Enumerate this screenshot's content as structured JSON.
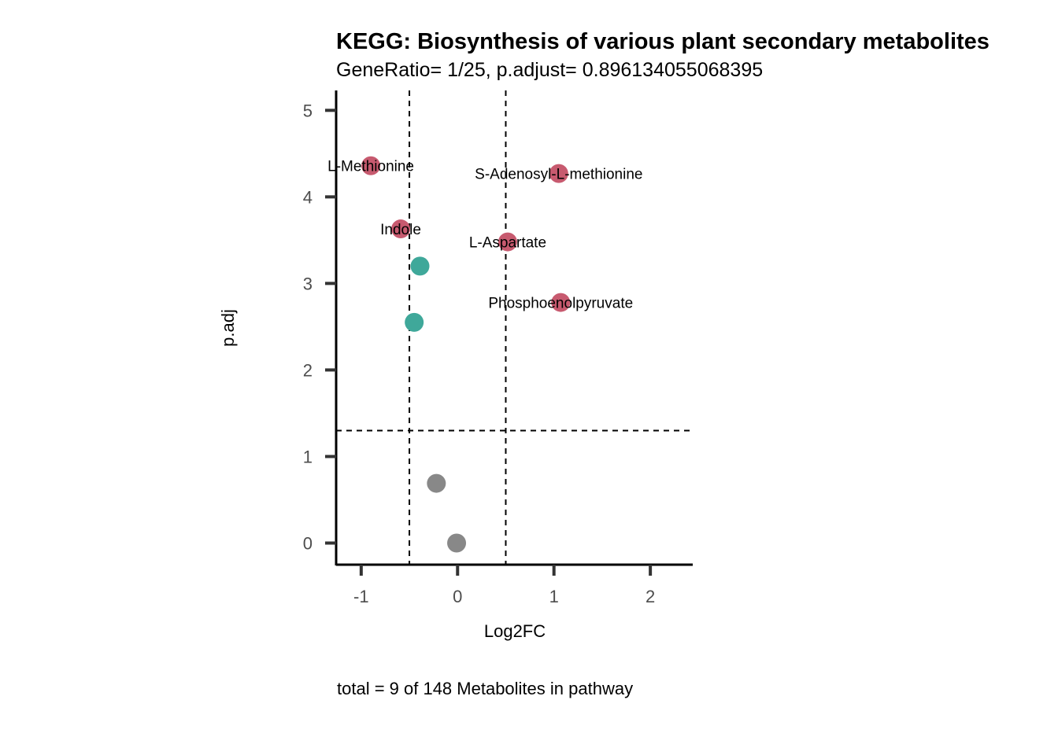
{
  "chart_data": {
    "type": "scatter",
    "title": "KEGG: Biosynthesis of various plant secondary metabolites",
    "subtitle": "GeneRatio= 1/25, p.adjust= 0.896134055068395",
    "xlabel": "Log2FC",
    "ylabel": "p.adj",
    "caption": "total = 9 of 148 Metabolites in pathway",
    "xlim": [
      -1.26,
      2.44
    ],
    "ylim": [
      -0.25,
      5.23
    ],
    "x_ticks": [
      -1,
      0,
      1,
      2
    ],
    "x_tick_labels": [
      "-1",
      "0",
      "1",
      "2"
    ],
    "y_ticks": [
      0,
      1,
      2,
      3,
      4,
      5
    ],
    "y_tick_labels": [
      "0",
      "1",
      "2",
      "3",
      "4",
      "5"
    ],
    "thresholds": {
      "x": [
        -0.5,
        0.5
      ],
      "y": [
        1.3
      ]
    },
    "grid": false,
    "legend": "none",
    "colors": {
      "up": "#c75a6f",
      "down": "#3fa89a",
      "ns": "#888888"
    },
    "points": [
      {
        "x": -0.9,
        "y": 4.36,
        "group": "up",
        "label": "L-Methionine"
      },
      {
        "x": 1.05,
        "y": 4.27,
        "group": "up",
        "label": "S-Adenosyl-L-methionine"
      },
      {
        "x": -0.59,
        "y": 3.63,
        "group": "up",
        "label": "Indole"
      },
      {
        "x": 0.52,
        "y": 3.48,
        "group": "up",
        "label": "L-Aspartate"
      },
      {
        "x": 1.07,
        "y": 2.78,
        "group": "up",
        "label": "Phosphoenolpyruvate"
      },
      {
        "x": -0.39,
        "y": 3.2,
        "group": "down",
        "label": ""
      },
      {
        "x": -0.45,
        "y": 2.55,
        "group": "down",
        "label": ""
      },
      {
        "x": -0.22,
        "y": 0.69,
        "group": "ns",
        "label": ""
      },
      {
        "x": -0.01,
        "y": 0.0,
        "group": "ns",
        "label": ""
      }
    ]
  }
}
